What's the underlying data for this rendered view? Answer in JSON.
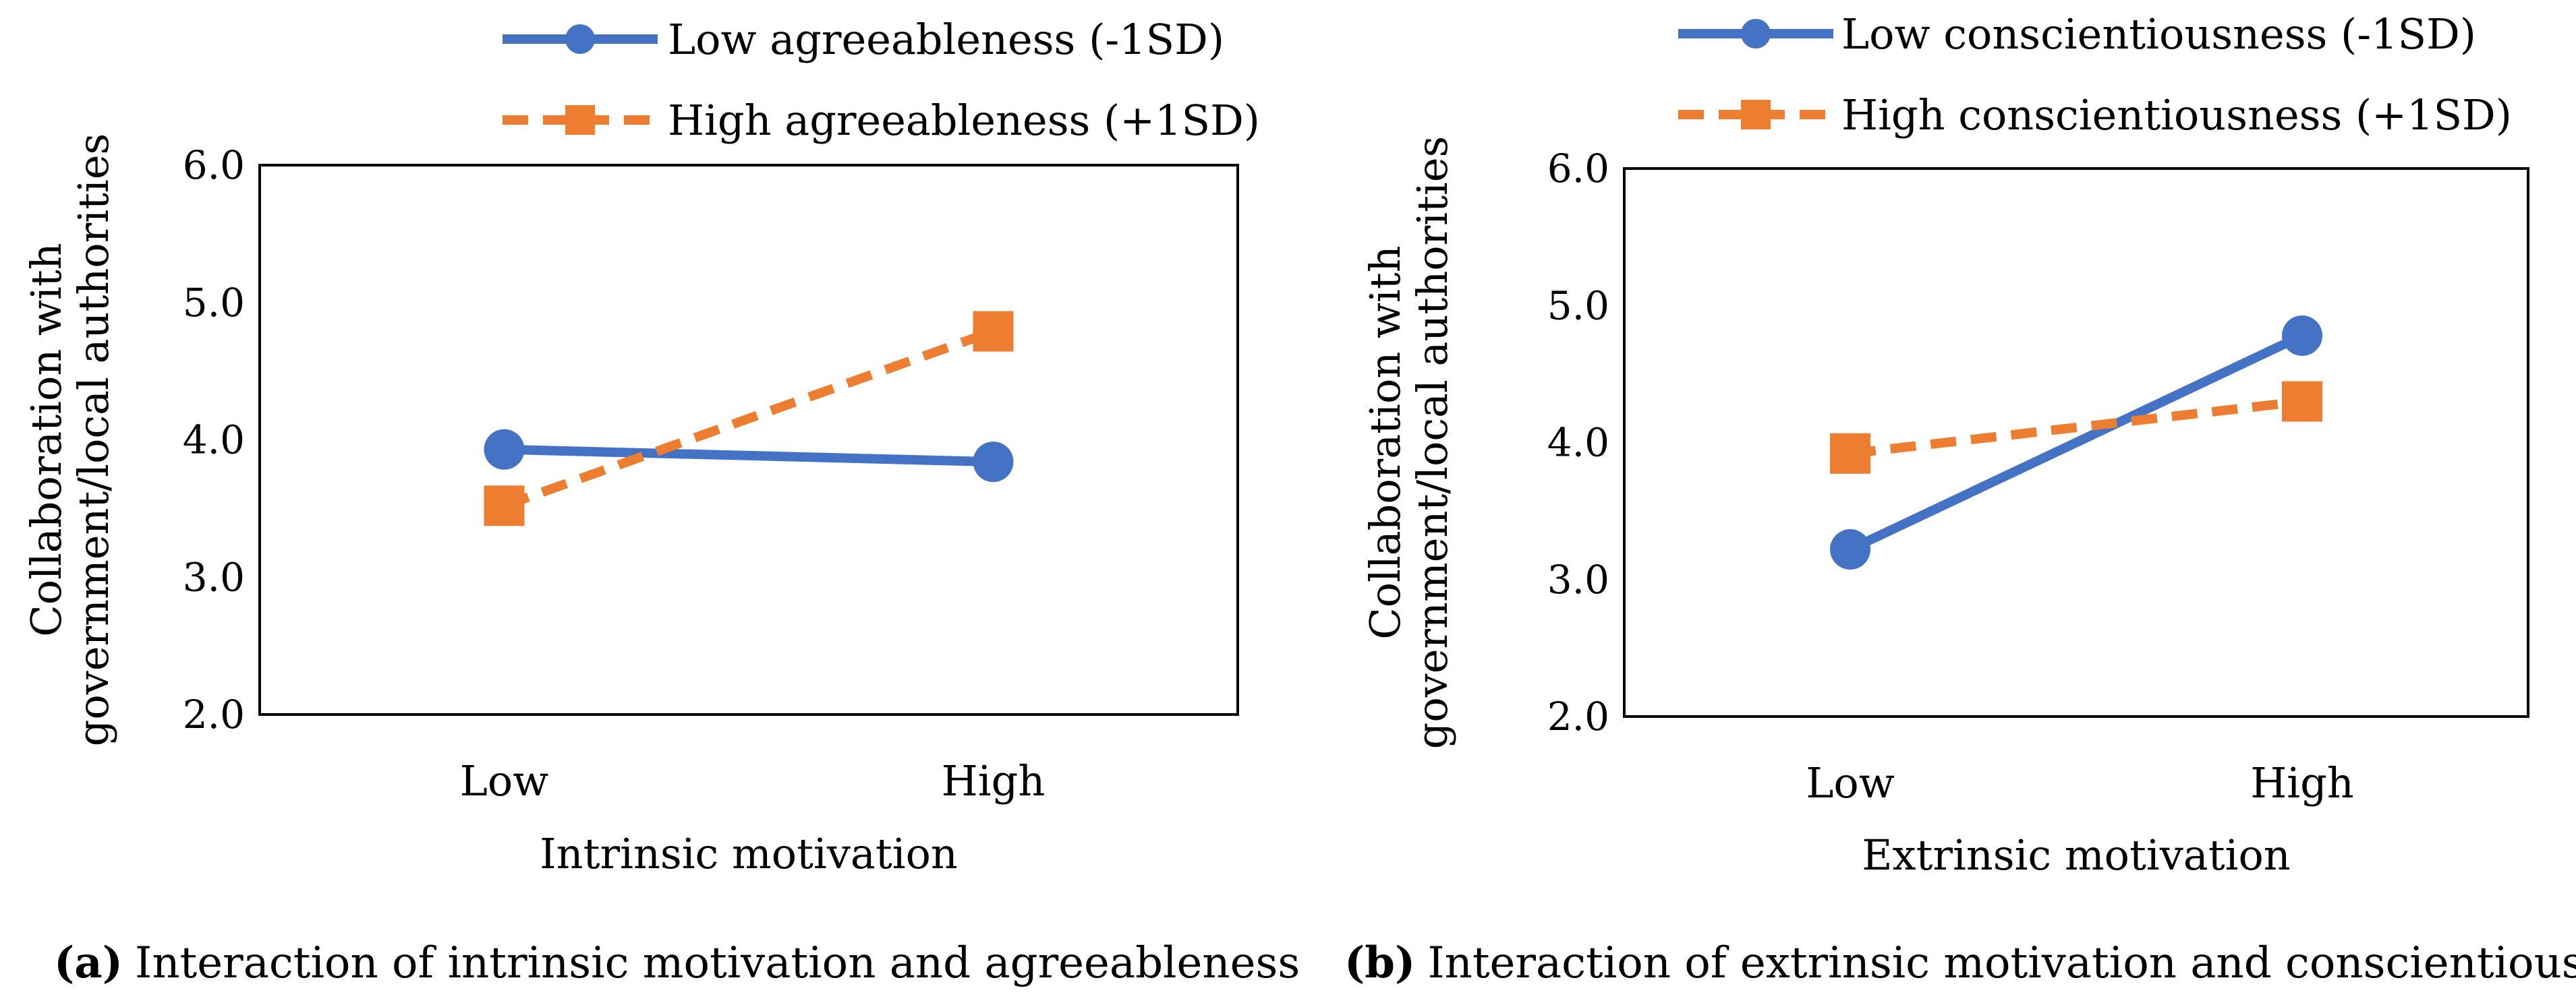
{
  "chart_data": [
    {
      "type": "line",
      "panel_label": "a",
      "caption": "Interaction of intrinsic motivation and agreeableness",
      "xlabel": "Intrinsic motivation",
      "ylabel_lines": [
        "Collaboration with",
        "government/local authorities"
      ],
      "categories": [
        "Low",
        "High"
      ],
      "ylim": [
        2.0,
        6.0
      ],
      "yticks": [
        "2.0",
        "3.0",
        "4.0",
        "5.0",
        "6.0"
      ],
      "series": [
        {
          "name": "Low agreeableness (-1SD)",
          "values": [
            3.93,
            3.84
          ],
          "color": "#4472C4",
          "marker": "circle",
          "dash": "solid"
        },
        {
          "name": "High agreeableness (+1SD)",
          "values": [
            3.52,
            4.79
          ],
          "color": "#ED7D31",
          "marker": "square",
          "dash": "dashed"
        }
      ]
    },
    {
      "type": "line",
      "panel_label": "b",
      "caption": "Interaction of extrinsic motivation and conscientiousness",
      "xlabel": "Extrinsic motivation",
      "ylabel_lines": [
        "Collaboration with",
        "government/local authorities"
      ],
      "categories": [
        "Low",
        "High"
      ],
      "ylim": [
        2.0,
        6.0
      ],
      "yticks": [
        "2.0",
        "3.0",
        "4.0",
        "5.0",
        "6.0"
      ],
      "series": [
        {
          "name": "Low conscientiousness (-1SD)",
          "values": [
            3.22,
            4.78
          ],
          "color": "#4472C4",
          "marker": "circle",
          "dash": "solid"
        },
        {
          "name": "High conscientiousness (+1SD)",
          "values": [
            3.92,
            4.3
          ],
          "color": "#ED7D31",
          "marker": "square",
          "dash": "dashed"
        }
      ]
    }
  ]
}
